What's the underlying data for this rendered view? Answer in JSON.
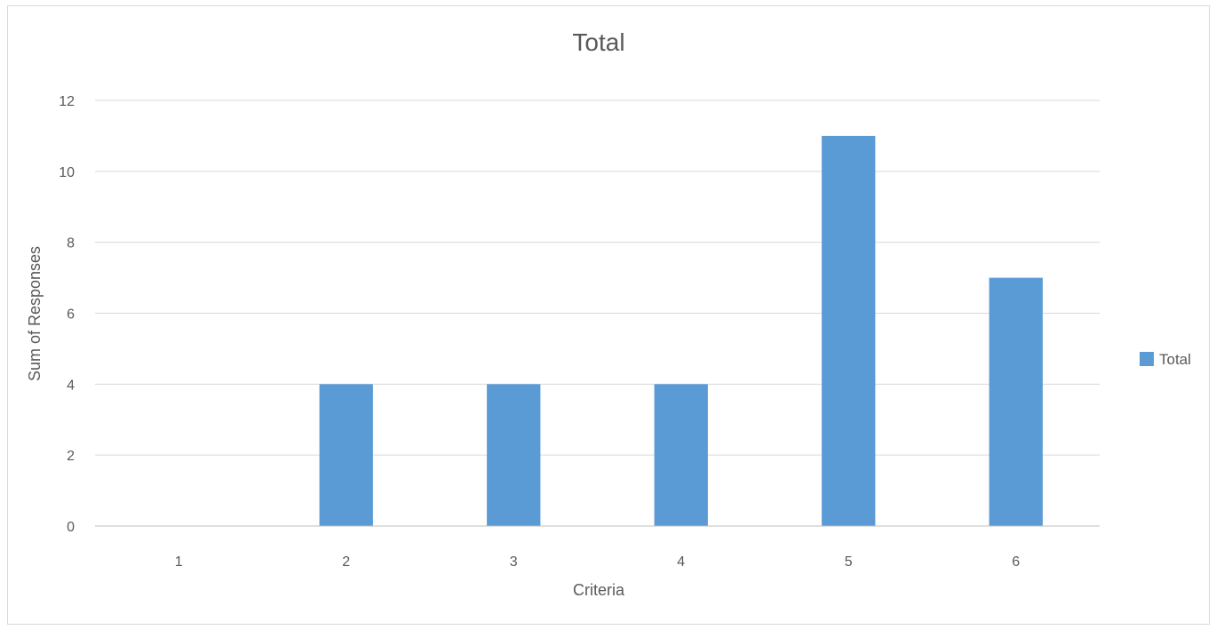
{
  "chart_data": {
    "type": "bar",
    "title": "Total",
    "xlabel": "Criteria",
    "ylabel": "Sum of Responses",
    "categories": [
      "1",
      "2",
      "3",
      "4",
      "5",
      "6"
    ],
    "series": [
      {
        "name": "Total",
        "values": [
          0,
          4,
          4,
          4,
          11,
          7
        ],
        "color": "#5b9bd5"
      }
    ],
    "ylim": [
      0,
      12
    ],
    "yticks": [
      "0",
      "2",
      "4",
      "6",
      "8",
      "10",
      "12"
    ],
    "grid": true,
    "legend_position": "right"
  }
}
